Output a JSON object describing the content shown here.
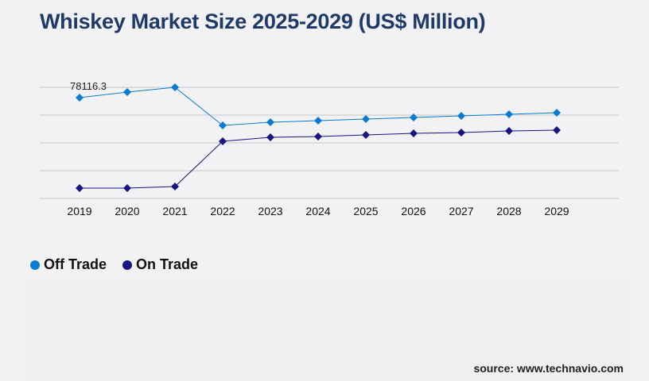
{
  "chart_data": {
    "type": "line",
    "title": "Whiskey Market Size 2025-2029 (US$ Million)",
    "categories": [
      "2019",
      "2020",
      "2021",
      "2022",
      "2023",
      "2024",
      "2025",
      "2026",
      "2027",
      "2028",
      "2029"
    ],
    "series": [
      {
        "name": "Off Trade",
        "color": "#0a7bd4",
        "values": [
          78116.3,
          82422,
          86113,
          56589,
          59049,
          60279,
          61509,
          62739,
          63970,
          65200,
          66430
        ]
      },
      {
        "name": "On Trade",
        "color": "#1a1480",
        "values": [
          7996,
          7996,
          9227,
          44287,
          47363,
          47978,
          49208,
          50438,
          51053,
          52284,
          52899
        ]
      }
    ],
    "data_labels": [
      {
        "series": "Off Trade",
        "category": "2019",
        "text": "78116.3"
      }
    ],
    "ylim": [
      0,
      86116
    ],
    "y_gridlines": 5,
    "y_tick_labels_shown": false,
    "grid": true,
    "legend_placement": "bottom-left"
  },
  "source": "source: www.technavio.com"
}
